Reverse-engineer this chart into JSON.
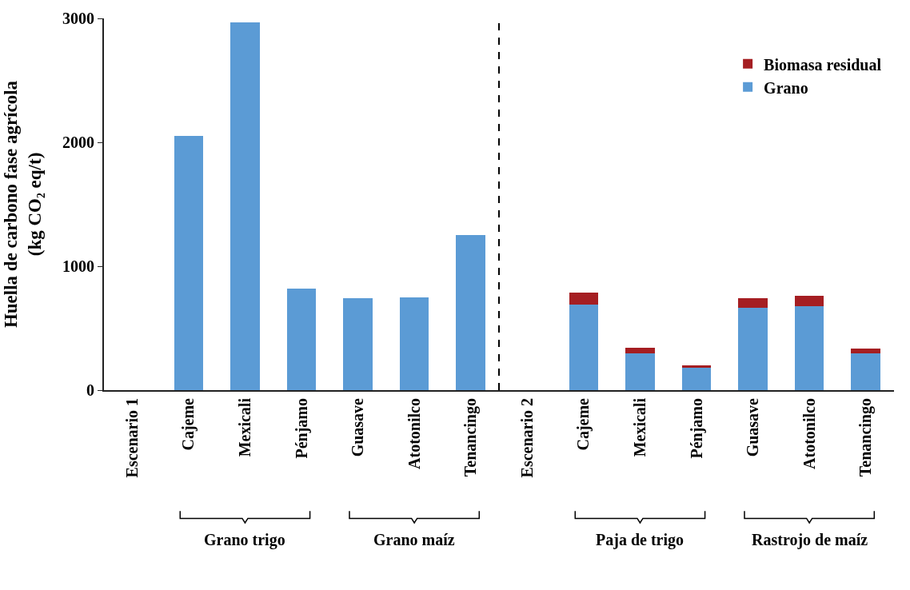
{
  "chart_data": {
    "type": "bar",
    "stacked": true,
    "ylabel": "Huella de carbono fase agrícola\n(kg CO₂ eq/t)",
    "categories": [
      "Escenario 1",
      "Cajeme",
      "Mexicali",
      "Pénjamo",
      "Guasave",
      "Atotonilco",
      "Tenancingo",
      "Escenario 2",
      "Cajeme",
      "Mexicali",
      "Pénjamo",
      "Guasave",
      "Atotonilco",
      "Tenancingo"
    ],
    "series": [
      {
        "name": "Grano",
        "color": "#5b9bd5",
        "values": [
          0,
          2050,
          2970,
          820,
          740,
          750,
          1250,
          0,
          690,
          300,
          180,
          665,
          680,
          300
        ]
      },
      {
        "name": "Biomasa residual",
        "color": "#a51e22",
        "values": [
          null,
          null,
          null,
          null,
          null,
          null,
          null,
          null,
          95,
          40,
          20,
          80,
          80,
          35
        ]
      }
    ],
    "ylim": [
      0,
      3000
    ],
    "yticks": [
      0,
      1000,
      2000,
      3000
    ],
    "legend": "top right",
    "annotations": [
      "Grano trigo",
      "Grano maíz",
      "Paja de trigo",
      "Rastrojo de maíz"
    ]
  }
}
